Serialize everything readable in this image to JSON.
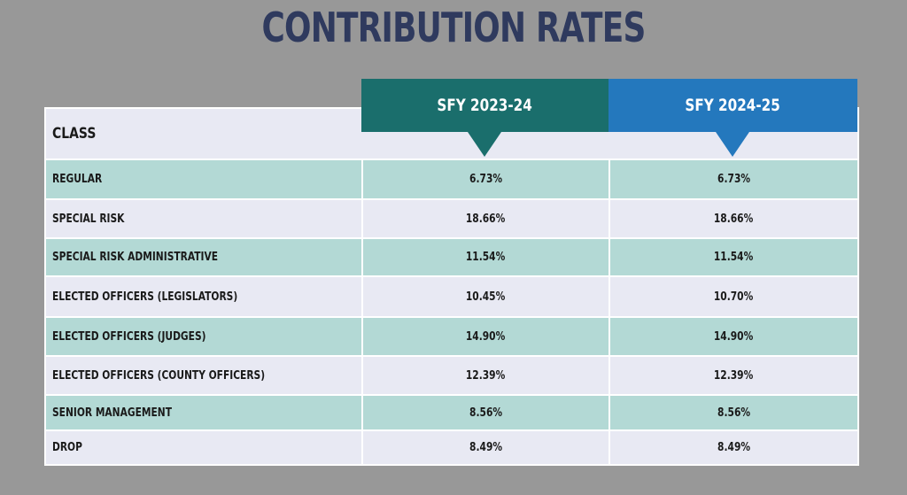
{
  "title": "CONTRIBUTION RATES",
  "columns": {
    "class": "CLASS",
    "sfy1": "SFY 2023-24",
    "sfy2": "SFY 2024-25"
  },
  "rows": [
    {
      "class": "REGULAR",
      "sfy1": "6.73%",
      "sfy2": "6.73%"
    },
    {
      "class": "SPECIAL RISK",
      "sfy1": "18.66%",
      "sfy2": "18.66%"
    },
    {
      "class": "SPECIAL RISK ADMINISTRATIVE",
      "sfy1": "11.54%",
      "sfy2": "11.54%"
    },
    {
      "class": "ELECTED OFFICERS (LEGISLATORS)",
      "sfy1": "10.45%",
      "sfy2": "10.70%"
    },
    {
      "class": "ELECTED OFFICERS (JUDGES)",
      "sfy1": "14.90%",
      "sfy2": "14.90%"
    },
    {
      "class": "ELECTED OFFICERS (COUNTY OFFICERS)",
      "sfy1": "12.39%",
      "sfy2": "12.39%"
    },
    {
      "class": "SENIOR MANAGEMENT",
      "sfy1": "8.56%",
      "sfy2": "8.56%"
    },
    {
      "class": "DROP",
      "sfy1": "8.49%",
      "sfy2": "8.49%"
    }
  ],
  "colors": {
    "background": "#989898",
    "title": "#2f3a5e",
    "sfy1_header": "#1a6e6c",
    "sfy2_header": "#2478bd",
    "row_teal": "#b3d9d5",
    "row_lavender": "#e8e9f3"
  }
}
